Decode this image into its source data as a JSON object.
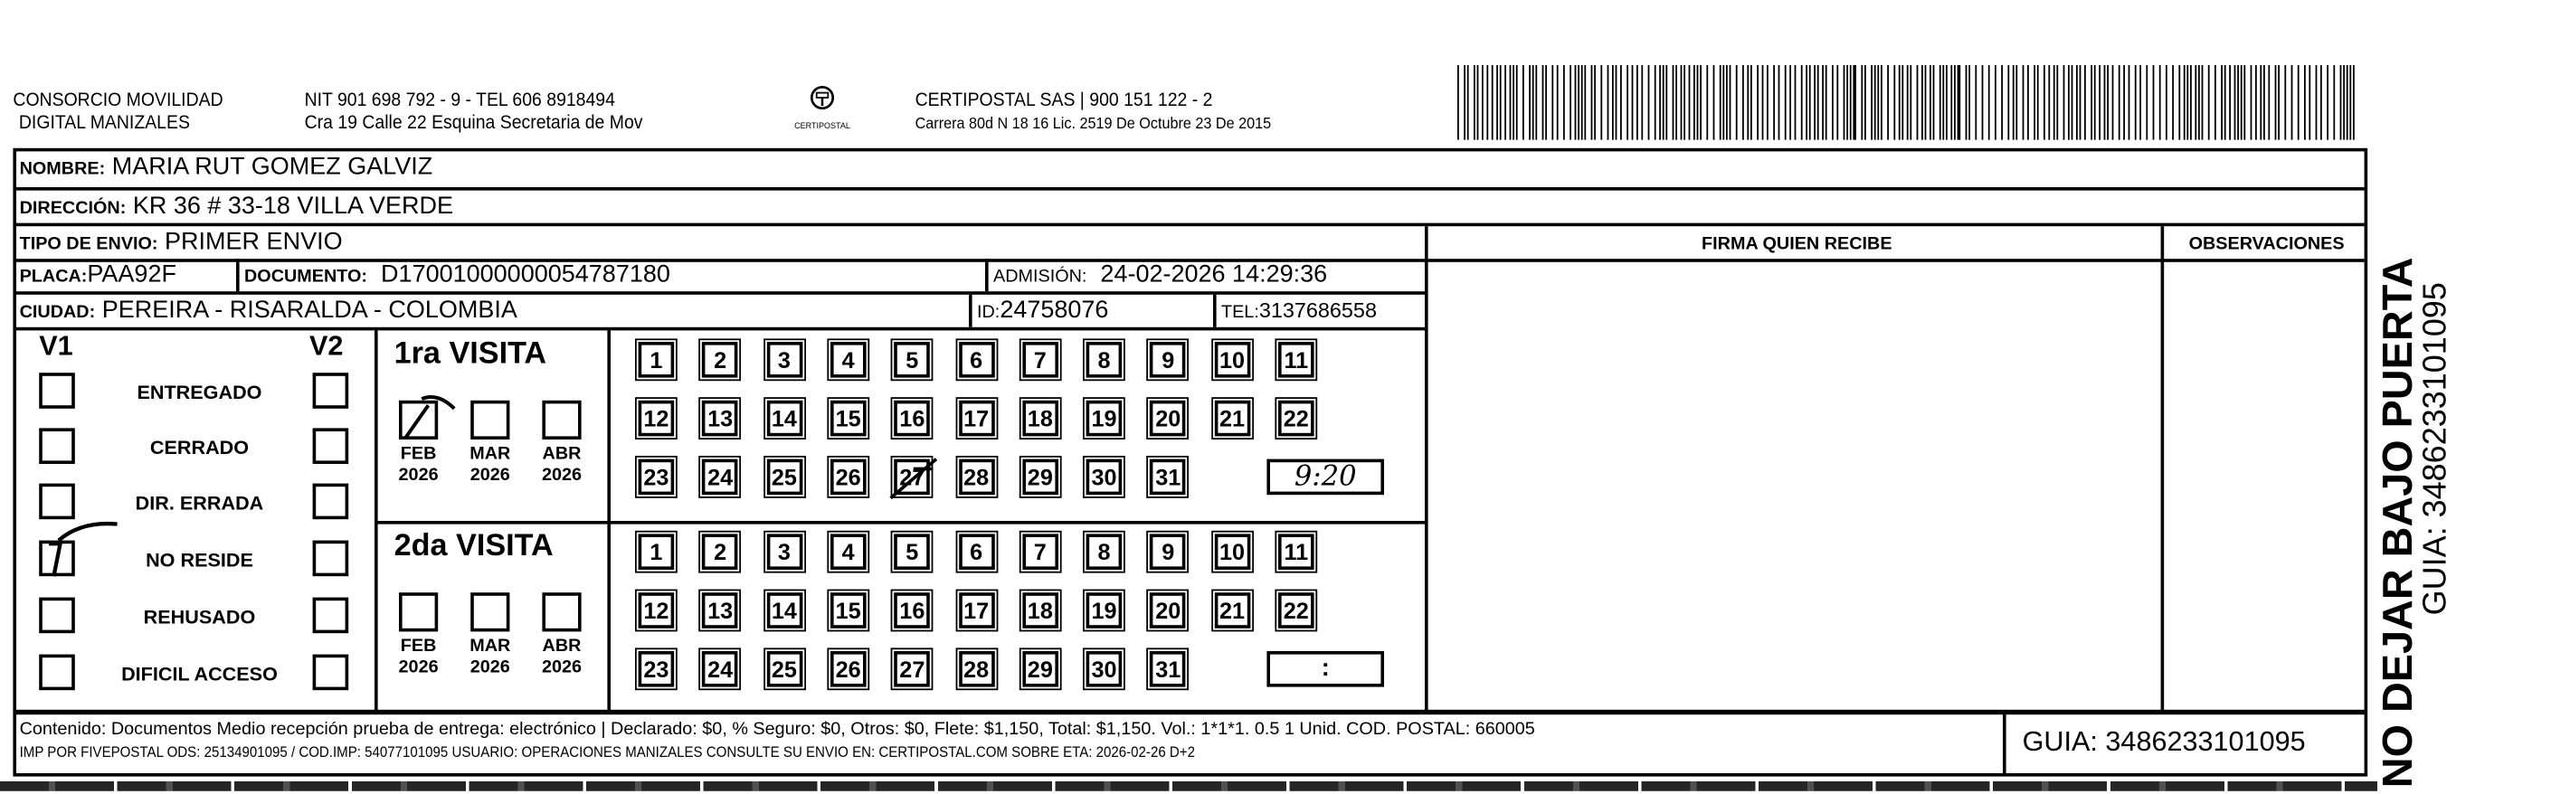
{
  "header": {
    "company_line1": "CONSORCIO MOVILIDAD",
    "company_line2": "DIGITAL MANIZALES",
    "nit_line": "NIT 901 698 792 - 9 - TEL 606 8918494",
    "address_line": "Cra 19 Calle 22 Esquina Secretaria de Mov",
    "logo_text": "CERTIPOSTAL",
    "courier_line": "CERTIPOSTAL SAS | 900 151 122 - 2",
    "courier_address": "Carrera 80d N 18 16  Lic. 2519 De Octubre 23 De 2015",
    "barcode_icon": "barcode"
  },
  "recipient": {
    "nombre_label": "NOMBRE:",
    "nombre": "MARIA RUT GOMEZ GALVIZ",
    "direccion_label": "DIRECCIÓN:",
    "direccion": "KR 36 # 33-18 VILLA VERDE",
    "tipo_label": "TIPO DE ENVIO:",
    "tipo": "PRIMER ENVIO",
    "placa_label": "PLACA:",
    "placa": "PAA92F",
    "documento_label": "DOCUMENTO:",
    "documento": "D17001000000054787180",
    "admision_label": "ADMISIÓN:",
    "admision": "24-02-2026 14:29:36",
    "ciudad_label": "CIUDAD:",
    "ciudad": "PEREIRA - RISARALDA - COLOMBIA",
    "id_label": "ID:",
    "id": "24758076",
    "tel_label": "TEL:",
    "tel": "3137686558"
  },
  "columns": {
    "firma": "FIRMA QUIEN RECIBE",
    "observaciones": "OBSERVACIONES"
  },
  "status": {
    "v1": "V1",
    "v2": "V2",
    "items": [
      "ENTREGADO",
      "CERRADO",
      "DIR. ERRADA",
      "NO RESIDE",
      "REHUSADO",
      "DIFICIL ACCESO"
    ],
    "v1_checked": "NO RESIDE"
  },
  "visits": [
    {
      "title": "1ra VISITA",
      "months": [
        {
          "m": "FEB",
          "y": "2026",
          "checked": true
        },
        {
          "m": "MAR",
          "y": "2026",
          "checked": false
        },
        {
          "m": "ABR",
          "y": "2026",
          "checked": false
        }
      ],
      "days_marked": [
        27
      ],
      "time": "9:20"
    },
    {
      "title": "2da VISITA",
      "months": [
        {
          "m": "FEB",
          "y": "2026",
          "checked": false
        },
        {
          "m": "MAR",
          "y": "2026",
          "checked": false
        },
        {
          "m": "ABR",
          "y": "2026",
          "checked": false
        }
      ],
      "days_marked": [],
      "time": ":"
    }
  ],
  "footer": {
    "line1": "Contenido: Documentos Medio recepción prueba de entrega: electrónico | Declarado: $0, % Seguro: $0, Otros: $0, Flete: $1,150, Total: $1,150. Vol.: 1*1*1. 0.5  1 Unid. COD. POSTAL: 660005",
    "line2": "IMP POR FIVEPOSTAL ODS: 25134901095 / COD.IMP: 54077101095 USUARIO: OPERACIONES MANIZALES CONSULTE SU ENVIO EN: CERTIPOSTAL.COM SOBRE ETA: 2026-02-26 D+2",
    "guia": "GUIA: 3486233101095"
  },
  "side": {
    "warning": "NO DEJAR BAJO PUERTA",
    "guia": "GUIA: 3486233101095"
  }
}
